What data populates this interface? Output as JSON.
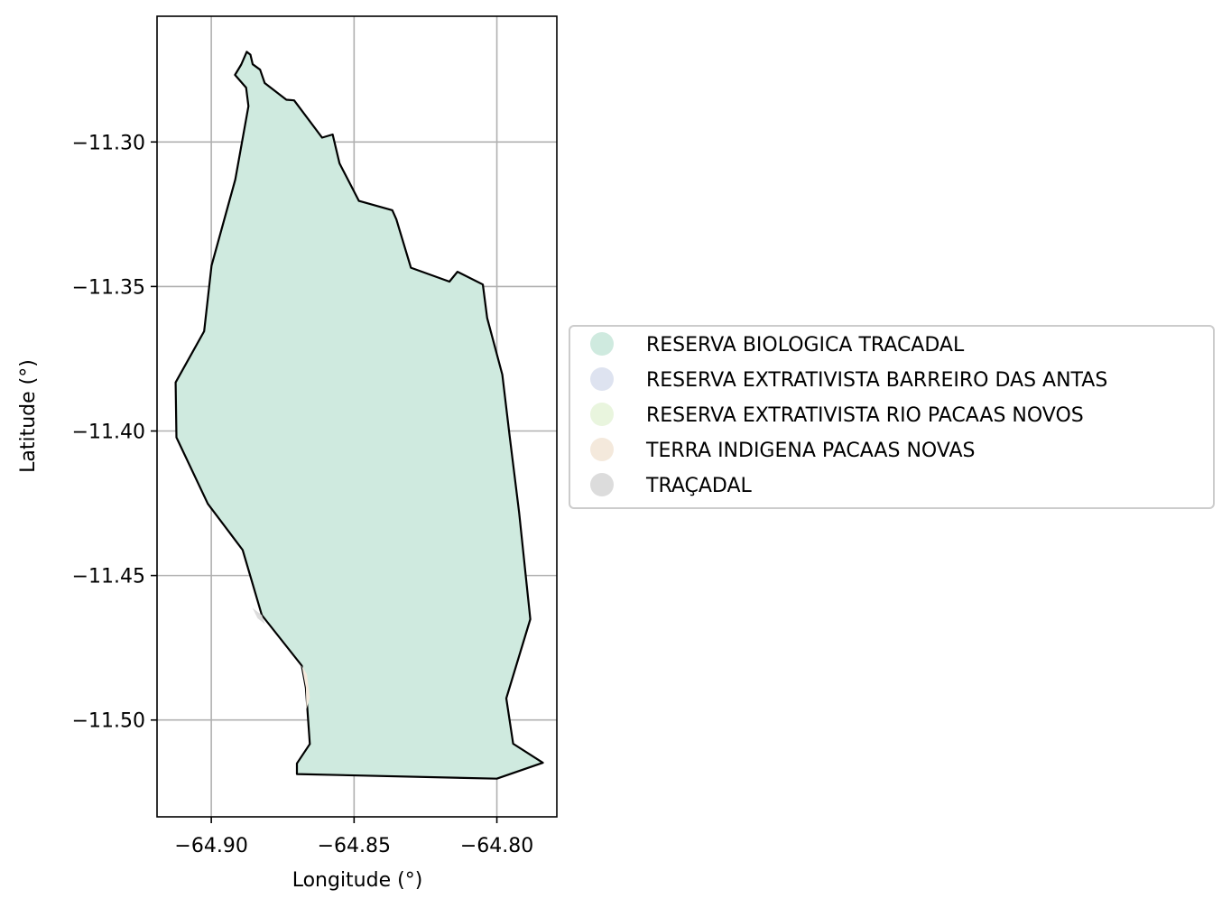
{
  "chart_data": {
    "type": "map",
    "title": "",
    "xlabel": "Longitude (°)",
    "ylabel": "Latitude (°)",
    "xlim": [
      -64.919,
      -64.779
    ],
    "ylim": [
      -11.5335,
      -11.2565
    ],
    "grid": true,
    "legend_position": "right",
    "xticks": [
      {
        "value": -64.9,
        "label": "−64.90"
      },
      {
        "value": -64.85,
        "label": "−64.85"
      },
      {
        "value": -64.8,
        "label": "−64.80"
      }
    ],
    "yticks": [
      {
        "value": -11.3,
        "label": "−11.30"
      },
      {
        "value": -11.35,
        "label": "−11.35"
      },
      {
        "value": -11.4,
        "label": "−11.40"
      },
      {
        "value": -11.45,
        "label": "−11.45"
      },
      {
        "value": -11.5,
        "label": "−11.50"
      }
    ],
    "categories": [
      {
        "name": "RESERVA BIOLOGICA TRACADAL",
        "color": "#cfeadf"
      },
      {
        "name": "RESERVA EXTRATIVISTA BARREIRO DAS ANTAS",
        "color": "#dee3f0"
      },
      {
        "name": "RESERVA EXTRATIVISTA RIO PACAAS NOVOS",
        "color": "#e9f5de"
      },
      {
        "name": "TERRA INDIGENA PACAAS NOVAS",
        "color": "#f4e9dc"
      },
      {
        "name": "TRAÇADAL",
        "color": "#dcdcdc"
      }
    ],
    "polygons": [
      {
        "name": "RESERVA BIOLOGICA TRACADAL",
        "color": "#cfeadf",
        "edgecolor": "#000000",
        "coordinates": [
          [
            -64.8876,
            -11.2688
          ],
          [
            -64.8863,
            -11.2698
          ],
          [
            -64.8855,
            -11.2731
          ],
          [
            -64.8829,
            -11.275
          ],
          [
            -64.8813,
            -11.2796
          ],
          [
            -64.8737,
            -11.2854
          ],
          [
            -64.871,
            -11.2856
          ],
          [
            -64.8612,
            -11.2985
          ],
          [
            -64.8575,
            -11.2974
          ],
          [
            -64.8551,
            -11.3074
          ],
          [
            -64.8483,
            -11.3204
          ],
          [
            -64.8366,
            -11.3236
          ],
          [
            -64.8352,
            -11.3268
          ],
          [
            -64.8301,
            -11.3435
          ],
          [
            -64.8166,
            -11.3483
          ],
          [
            -64.8138,
            -11.3449
          ],
          [
            -64.8049,
            -11.3493
          ],
          [
            -64.8034,
            -11.3609
          ],
          [
            -64.7981,
            -11.3805
          ],
          [
            -64.7956,
            -11.4012
          ],
          [
            -64.7922,
            -11.4282
          ],
          [
            -64.7883,
            -11.4651
          ],
          [
            -64.7967,
            -11.4925
          ],
          [
            -64.7943,
            -11.5082
          ],
          [
            -64.7839,
            -11.5148
          ],
          [
            -64.8,
            -11.5203
          ],
          [
            -64.87,
            -11.5187
          ],
          [
            -64.87,
            -11.515
          ],
          [
            -64.8655,
            -11.5083
          ],
          [
            -64.8669,
            -11.4888
          ],
          [
            -64.8683,
            -11.4812
          ],
          [
            -64.8823,
            -11.4637
          ],
          [
            -64.889,
            -11.4412
          ],
          [
            -64.9012,
            -11.4252
          ],
          [
            -64.9122,
            -11.4022
          ],
          [
            -64.9125,
            -11.3832
          ],
          [
            -64.9025,
            -11.3655
          ],
          [
            -64.8999,
            -11.3428
          ],
          [
            -64.8916,
            -11.313
          ],
          [
            -64.887,
            -11.2876
          ],
          [
            -64.8878,
            -11.2812
          ],
          [
            -64.8917,
            -11.2768
          ],
          [
            -64.8895,
            -11.2732
          ],
          [
            -64.8876,
            -11.2688
          ]
        ]
      },
      {
        "name": "TERRA INDIGENA PACAAS NOVAS",
        "color": "#f4e9dc",
        "coordinates": [
          [
            -64.8683,
            -11.4812
          ],
          [
            -64.8665,
            -11.4842
          ],
          [
            -64.8655,
            -11.4922
          ],
          [
            -64.8667,
            -11.4962
          ],
          [
            -64.8669,
            -11.4888
          ],
          [
            -64.8683,
            -11.4812
          ]
        ]
      },
      {
        "name": "TRAÇADAL",
        "color": "#dcdcdc",
        "coordinates": [
          [
            -64.8856,
            -11.4612
          ],
          [
            -64.8838,
            -11.4648
          ],
          [
            -64.8812,
            -11.4668
          ],
          [
            -64.8823,
            -11.4637
          ],
          [
            -64.8856,
            -11.4612
          ]
        ]
      }
    ]
  }
}
